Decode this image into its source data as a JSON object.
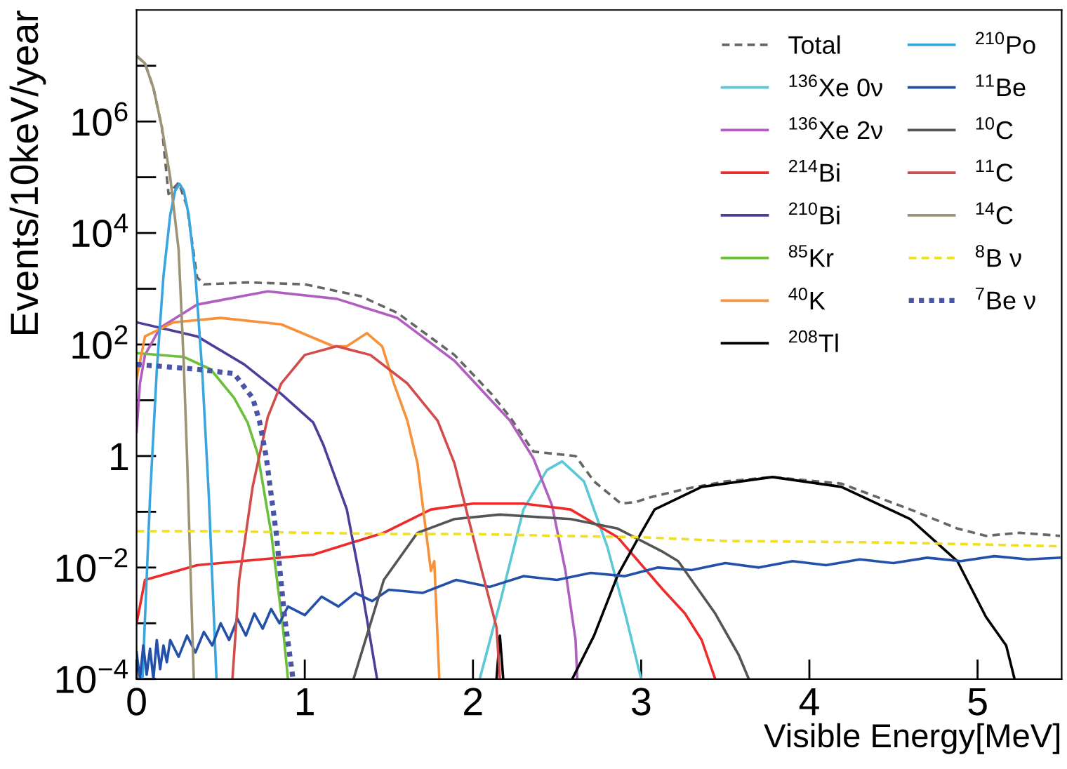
{
  "chart_data": {
    "type": "line",
    "xlabel": "Visible Energy[MeV]",
    "ylabel": "Events/10keV/year",
    "log": true,
    "grid": false,
    "legend": "top right",
    "xlim": [
      0,
      5.5
    ],
    "ylim": [
      0.0001,
      100000000
    ],
    "xticks": [
      0,
      1,
      2,
      3,
      4,
      5
    ],
    "yticks": [
      {
        "value": 0.0001,
        "label": "10$^{−4}$"
      },
      {
        "value": 0.001,
        "label": null
      },
      {
        "value": 0.01,
        "label": "10$^{−2}$"
      },
      {
        "value": 0.1,
        "label": null
      },
      1,
      {
        "value": 10,
        "label": null
      },
      {
        "value": 100,
        "label": "10$^{2}$"
      },
      {
        "value": 1000,
        "label": null
      },
      {
        "value": 10000,
        "label": "10$^{4}$"
      },
      {
        "value": 100000,
        "label": null
      },
      {
        "value": 1000000,
        "label": "10$^{6}$"
      },
      {
        "value": 10000000,
        "label": null
      }
    ],
    "series": [
      {
        "name": "Total",
        "color": "#666666",
        "line_style": "dashed",
        "x": [
          0,
          0.05,
          0.1,
          0.15,
          0.19,
          0.25,
          0.3,
          0.36,
          0.4,
          0.66,
          1.0,
          1.33,
          1.55,
          1.89,
          2.11,
          2.22,
          2.36,
          2.61,
          2.72,
          2.88,
          2.97,
          3.05,
          3.27,
          3.5,
          3.78,
          4.19,
          4.6,
          4.88,
          5.05,
          5.25,
          5.49
        ],
        "values": [
          15000000,
          11000000,
          4000000,
          800000,
          50000,
          80000,
          30000,
          1600,
          1200,
          1300,
          1200,
          740,
          370,
          65,
          13,
          5,
          1.2,
          1.0,
          0.35,
          0.14,
          0.15,
          0.18,
          0.26,
          0.35,
          0.42,
          0.32,
          0.11,
          0.05,
          0.037,
          0.042,
          0.037
        ]
      },
      {
        "name": "$^{136}$Xe 0ν",
        "color": "#5bc8d8",
        "line_style": "solid",
        "x": [
          2.04,
          2.16,
          2.3,
          2.44,
          2.53,
          2.66,
          2.8,
          2.91,
          3.0
        ],
        "values": [
          0.0001,
          0.0023,
          0.11,
          0.56,
          0.8,
          0.35,
          0.023,
          0.0013,
          0.0001
        ]
      },
      {
        "name": "$^{136}$Xe 2ν",
        "color": "#b05fc0",
        "line_style": "solid",
        "x": [
          0,
          0.02,
          0.05,
          0.14,
          0.36,
          0.78,
          1.19,
          1.55,
          1.89,
          2.22,
          2.36,
          2.47,
          2.55,
          2.61,
          2.62
        ],
        "values": [
          2.7,
          20,
          65,
          200,
          520,
          900,
          660,
          300,
          51,
          4.3,
          0.9,
          0.13,
          0.0087,
          0.0005,
          0.0001
        ]
      },
      {
        "name": "$^{214}$Bi",
        "color": "#ee2a2a",
        "line_style": "solid",
        "x": [
          0,
          0.05,
          0.36,
          1.05,
          1.47,
          1.75,
          2.0,
          2.3,
          2.58,
          2.86,
          3.13,
          3.26,
          3.36,
          3.44
        ],
        "values": [
          0.001,
          0.006,
          0.011,
          0.017,
          0.042,
          0.11,
          0.14,
          0.14,
          0.11,
          0.035,
          0.004,
          0.0015,
          0.0005,
          0.0001
        ]
      },
      {
        "name": "$^{210}$Bi",
        "color": "#4b3f9a",
        "line_style": "solid",
        "x": [
          0,
          0.36,
          0.64,
          0.86,
          1.05,
          1.11,
          1.25,
          1.33,
          1.43
        ],
        "values": [
          250,
          140,
          44,
          13,
          4,
          1.6,
          0.11,
          0.006,
          0.0001
        ]
      },
      {
        "name": "$^{85}$Kr",
        "color": "#6abf3b",
        "line_style": "solid",
        "x": [
          0,
          0.28,
          0.44,
          0.58,
          0.66,
          0.72,
          0.8,
          0.87,
          0.9
        ],
        "values": [
          70,
          60,
          36,
          11,
          4,
          1.1,
          0.042,
          0.00085,
          0.0001
        ]
      },
      {
        "name": "$^{40}$K",
        "color": "#f7913a",
        "line_style": "solid",
        "x": [
          0,
          0.05,
          0.22,
          0.5,
          0.86,
          1.17,
          1.25,
          1.37,
          1.46,
          1.53,
          1.61,
          1.67,
          1.75,
          1.77,
          1.8
        ],
        "values": [
          24,
          140,
          250,
          300,
          230,
          93,
          93,
          160,
          93,
          20,
          4.3,
          0.74,
          0.0087,
          0.013,
          0.0001
        ]
      },
      {
        "name": "$^{208}$Tl",
        "color": "#000000",
        "line_style": "solid",
        "x": [
          2.14,
          2.16,
          2.18,
          2.4,
          2.59,
          2.72,
          2.86,
          3.0,
          3.08,
          3.36,
          3.78,
          4.19,
          4.6,
          4.88,
          5.05,
          5.17,
          5.22
        ],
        "values": [
          0.0001,
          0.0006,
          0.0001,
          null,
          0.0001,
          0.0006,
          0.0072,
          0.042,
          0.11,
          0.28,
          0.42,
          0.28,
          0.074,
          0.013,
          0.0013,
          0.0004,
          0.0001
        ]
      },
      {
        "name": "$^{210}$Po",
        "color": "#3aa6e0",
        "line_style": "solid",
        "x": [
          0.035,
          0.08,
          0.12,
          0.16,
          0.2,
          0.23,
          0.255,
          0.28,
          0.31,
          0.35,
          0.39,
          0.43,
          0.475
        ],
        "values": [
          0.0001,
          0.18,
          34,
          1700,
          21000,
          58000,
          76000,
          58000,
          21000,
          1700,
          34,
          0.18,
          0.0001
        ]
      },
      {
        "name": "$^{11}$Be",
        "color": "#2350a8",
        "line_style": "solid",
        "x": [
          0,
          0.02,
          0.04,
          0.06,
          0.08,
          0.1,
          0.12,
          0.14,
          0.16,
          0.18,
          0.2,
          0.25,
          0.3,
          0.35,
          0.4,
          0.45,
          0.5,
          0.55,
          0.6,
          0.65,
          0.7,
          0.75,
          0.8,
          0.85,
          0.9,
          1.0,
          1.1,
          1.2,
          1.3,
          1.4,
          1.5,
          1.7,
          1.9,
          2.1,
          2.3,
          2.5,
          2.7,
          2.9,
          3.1,
          3.3,
          3.5,
          3.7,
          3.9,
          4.1,
          4.3,
          4.5,
          4.7,
          4.9,
          5.1,
          5.3,
          5.49
        ],
        "values": [
          0.0003,
          0.0001,
          0.0004,
          0.00012,
          0.00035,
          0.0001,
          0.0005,
          0.00015,
          0.0004,
          0.0002,
          0.0005,
          0.00025,
          0.0006,
          0.0003,
          0.0007,
          0.0004,
          0.001,
          0.0005,
          0.0012,
          0.0006,
          0.0015,
          0.0008,
          0.0018,
          0.001,
          0.002,
          0.0014,
          0.003,
          0.002,
          0.0035,
          0.0025,
          0.004,
          0.0035,
          0.006,
          0.0045,
          0.007,
          0.006,
          0.008,
          0.007,
          0.01,
          0.009,
          0.012,
          0.01,
          0.013,
          0.011,
          0.014,
          0.012,
          0.015,
          0.013,
          0.016,
          0.014,
          0.015
        ]
      },
      {
        "name": "$^{10}$C",
        "color": "#555555",
        "line_style": "solid",
        "x": [
          1.29,
          1.47,
          1.67,
          1.89,
          2.16,
          2.58,
          2.86,
          3.13,
          3.22,
          3.44,
          3.58,
          3.64
        ],
        "values": [
          0.0001,
          0.006,
          0.042,
          0.074,
          0.089,
          0.074,
          0.05,
          0.019,
          0.013,
          0.0015,
          0.00027,
          0.0001
        ]
      },
      {
        "name": "$^{11}$C",
        "color": "#d24c4c",
        "line_style": "solid",
        "x": [
          0.57,
          0.61,
          0.69,
          0.78,
          0.86,
          1.0,
          1.19,
          1.39,
          1.61,
          1.79,
          1.89,
          2.03,
          2.14,
          2.16
        ],
        "values": [
          0.0001,
          0.006,
          0.28,
          5,
          20,
          65,
          93,
          65,
          20,
          4.3,
          0.74,
          0.016,
          0.00085,
          0.0001
        ]
      },
      {
        "name": "$^{14}$C",
        "color": "#9c9474",
        "line_style": "solid",
        "x": [
          0,
          0.05,
          0.1,
          0.15,
          0.2,
          0.25,
          0.28,
          0.3,
          0.32,
          0.34
        ],
        "values": [
          15000000,
          11000000,
          4000000,
          800000,
          100000,
          5000,
          50,
          1,
          0.01,
          0.0001
        ]
      },
      {
        "name": "$^{8}$B ν",
        "color": "#f0e020",
        "line_style": "dashed",
        "x": [
          0,
          0.5,
          1.0,
          1.5,
          2.0,
          2.5,
          3.0,
          3.5,
          4.0,
          4.5,
          5.0,
          5.49
        ],
        "values": [
          0.045,
          0.045,
          0.042,
          0.04,
          0.04,
          0.037,
          0.035,
          0.03,
          0.029,
          0.028,
          0.026,
          0.024
        ]
      },
      {
        "name": "$^{7}$Be ν",
        "color": "#4a55a8",
        "line_style": "dotted",
        "x": [
          0,
          0.36,
          0.58,
          0.69,
          0.73,
          0.77,
          0.83,
          0.88,
          0.93
        ],
        "values": [
          44,
          36,
          30,
          11,
          4.3,
          1,
          0.042,
          0.0013,
          0.0001
        ]
      }
    ]
  }
}
